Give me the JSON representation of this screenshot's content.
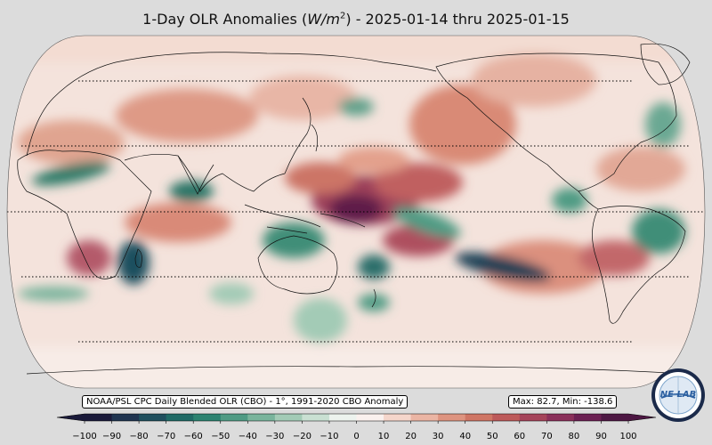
{
  "title": {
    "prefix": "1-Day OLR Anomalies (",
    "unit_base": "W/m",
    "unit_exp": "2",
    "suffix": ") - 2025-01-14 thru 2025-01-15"
  },
  "source_note": "NOAA/PSL CPC Daily Blended OLR (CBO) - 1°, 1991-2020 CBO Anomaly",
  "stats": "Max: 82.7,  Min: -138.6",
  "logo_text": "NE LAB",
  "colorbar": {
    "ticks": [
      "−100",
      "−90",
      "−80",
      "−70",
      "−60",
      "−50",
      "−40",
      "−30",
      "−20",
      "−10",
      "0",
      "10",
      "20",
      "30",
      "40",
      "50",
      "60",
      "70",
      "80",
      "90",
      "100"
    ],
    "colors": [
      "#1a1a3a",
      "#1f3450",
      "#1f4f5e",
      "#1f6a66",
      "#2b8270",
      "#4f9b84",
      "#79b49c",
      "#a3cbb6",
      "#c9e0d2",
      "#edf3ee",
      "#faf1ee",
      "#f5d6cb",
      "#ebb5a4",
      "#de9480",
      "#cf7665",
      "#bd5a5a",
      "#a5435a",
      "#8a2f5a",
      "#6b1f52",
      "#4d1743"
    ]
  }
}
